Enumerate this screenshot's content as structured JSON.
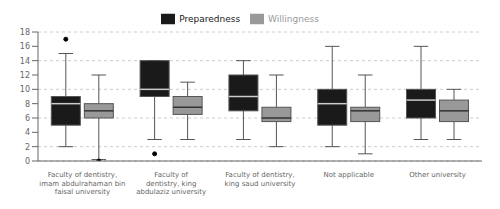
{
  "chart_data": {
    "type": "box",
    "categories": [
      "Faculty of dentistry,\nimam abdulrahaman bin\nfaisal university",
      "Faculty of\ndentistry, king\nabdulaziz university",
      "Faculty of dentistry,\nking saud university",
      "Not applicable",
      "Other university"
    ],
    "series": [
      {
        "name": "Preparedness",
        "color": "#1a1a1a",
        "values": [
          {
            "whislo": 2.0,
            "q1": 5.0,
            "med": 8.0,
            "q3": 9.0,
            "whishi": 15.0,
            "fliers": [
              17.0
            ]
          },
          {
            "whislo": 3.0,
            "q1": 9.0,
            "med": 10.0,
            "q3": 14.0,
            "whishi": 14.0,
            "fliers": [
              1.0
            ]
          },
          {
            "whislo": 3.0,
            "q1": 7.0,
            "med": 9.0,
            "q3": 12.0,
            "whishi": 14.0,
            "fliers": []
          },
          {
            "whislo": 2.0,
            "q1": 5.0,
            "med": 8.0,
            "q3": 10.0,
            "whishi": 16.0,
            "fliers": []
          },
          {
            "whislo": 3.0,
            "q1": 6.0,
            "med": 8.5,
            "q3": 10.0,
            "whishi": 16.0,
            "fliers": []
          }
        ]
      },
      {
        "name": "Willingness",
        "color": "#999999",
        "values": [
          {
            "whislo": 0.2,
            "q1": 6.0,
            "med": 7.0,
            "q3": 8.0,
            "whishi": 12.0,
            "fliers": [
              0.0
            ]
          },
          {
            "whislo": 3.0,
            "q1": 6.5,
            "med": 7.5,
            "q3": 9.0,
            "whishi": 11.0,
            "fliers": []
          },
          {
            "whislo": 2.0,
            "q1": 5.5,
            "med": 6.0,
            "q3": 7.5,
            "whishi": 12.0,
            "fliers": []
          },
          {
            "whislo": 1.0,
            "q1": 5.5,
            "med": 7.0,
            "q3": 7.5,
            "whishi": 12.0,
            "fliers": []
          },
          {
            "whislo": 3.0,
            "q1": 5.5,
            "med": 7.0,
            "q3": 8.5,
            "whishi": 10.0,
            "fliers": []
          }
        ]
      }
    ],
    "ylim": [
      0,
      18
    ],
    "yticks": [
      0,
      2,
      4,
      6,
      8,
      10,
      12,
      14,
      16,
      18
    ],
    "grid": true,
    "legend": "top"
  }
}
